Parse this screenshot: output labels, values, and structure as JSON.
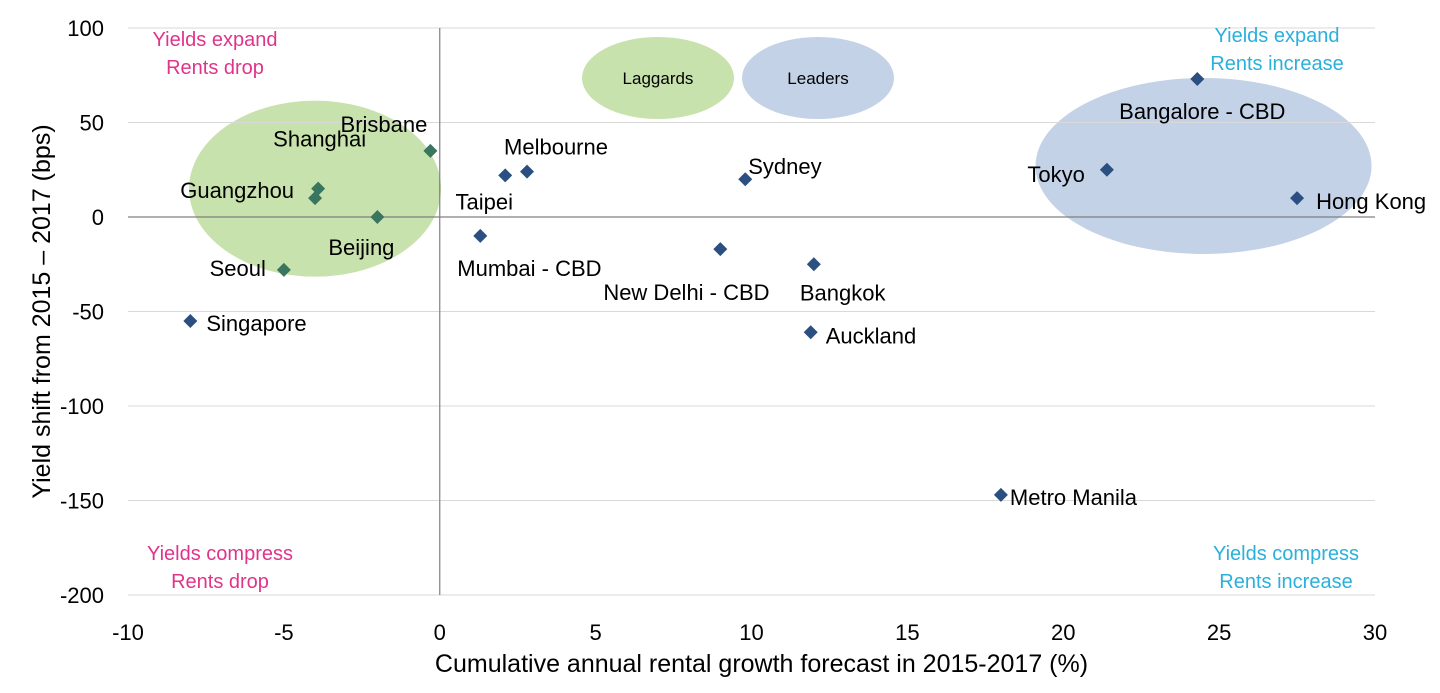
{
  "chart_data": {
    "type": "scatter",
    "xlabel": "Cumulative annual rental growth forecast in 2015-2017 (%)",
    "ylabel": "Yield shift from 2015 – 2017 (bps)",
    "xlim": [
      -10,
      30
    ],
    "ylim": [
      -200,
      100
    ],
    "x_ticks": [
      -10,
      -5,
      0,
      5,
      10,
      15,
      20,
      25,
      30
    ],
    "y_ticks": [
      100,
      50,
      0,
      -50,
      -100,
      -150,
      -200
    ],
    "x_tick_labels": [
      "-10",
      "-5",
      "0",
      "5",
      "10",
      "15",
      "20",
      "25",
      "30"
    ],
    "y_tick_labels": [
      "100",
      "50",
      "0",
      "-50",
      "-100",
      "-150",
      "-200"
    ],
    "grid": "horizontal",
    "marker": "diamond",
    "marker_color": "#2a4f80",
    "laggard_marker_color": "#3a7560",
    "points": [
      {
        "label": "Brisbane",
        "x": -0.3,
        "y": 35,
        "group": "laggards"
      },
      {
        "label": "Shanghai",
        "x": -3.9,
        "y": 15,
        "group": "laggards"
      },
      {
        "label": "Guangzhou",
        "x": -4.0,
        "y": 10,
        "group": "laggards"
      },
      {
        "label": "Beijing",
        "x": -2.0,
        "y": 0,
        "group": "laggards"
      },
      {
        "label": "Seoul",
        "x": -5.0,
        "y": -28,
        "group": "laggards"
      },
      {
        "label": "Singapore",
        "x": -8.0,
        "y": -55,
        "group": ""
      },
      {
        "label": "Melbourne",
        "x": 2.8,
        "y": 24,
        "group": ""
      },
      {
        "label": "Taipei",
        "x": 2.1,
        "y": 22,
        "group": ""
      },
      {
        "label": "Mumbai - CBD",
        "x": 1.3,
        "y": -10,
        "group": ""
      },
      {
        "label": "Sydney",
        "x": 9.8,
        "y": 20,
        "group": ""
      },
      {
        "label": "New Delhi - CBD",
        "x": 9.0,
        "y": -17,
        "group": ""
      },
      {
        "label": "Bangkok",
        "x": 12.0,
        "y": -25,
        "group": ""
      },
      {
        "label": "Auckland",
        "x": 11.9,
        "y": -61,
        "group": ""
      },
      {
        "label": "Metro Manila",
        "x": 18.0,
        "y": -147,
        "group": ""
      },
      {
        "label": "Bangalore - CBD",
        "x": 24.3,
        "y": 73,
        "group": "leaders"
      },
      {
        "label": "Tokyo",
        "x": 21.4,
        "y": 25,
        "group": "leaders"
      },
      {
        "label": "Hong Kong",
        "x": 27.5,
        "y": 10,
        "group": "leaders"
      }
    ],
    "legend": [
      {
        "name": "Laggards",
        "color": "#c8e2ad"
      },
      {
        "name": "Leaders",
        "color": "#c3d2e6"
      }
    ],
    "legend_position": "top-center",
    "quadrant_labels": [
      {
        "line1": "Yields expand",
        "line2": "Rents drop",
        "position": "top-left",
        "color": "#e0348a"
      },
      {
        "line1": "Yields expand",
        "line2": "Rents increase",
        "position": "top-right",
        "color": "#2ab0dc"
      },
      {
        "line1": "Yields compress",
        "line2": "Rents drop",
        "position": "bottom-left",
        "color": "#e0348a"
      },
      {
        "line1": "Yields compress",
        "line2": "Rents increase",
        "position": "bottom-right",
        "color": "#2ab0dc"
      }
    ],
    "highlight_regions": [
      {
        "name": "laggards",
        "center": [
          -4,
          15
        ],
        "color": "#c8e2ad"
      },
      {
        "name": "leaders",
        "center": [
          24.5,
          27
        ],
        "color": "#c3d2e6"
      }
    ]
  }
}
